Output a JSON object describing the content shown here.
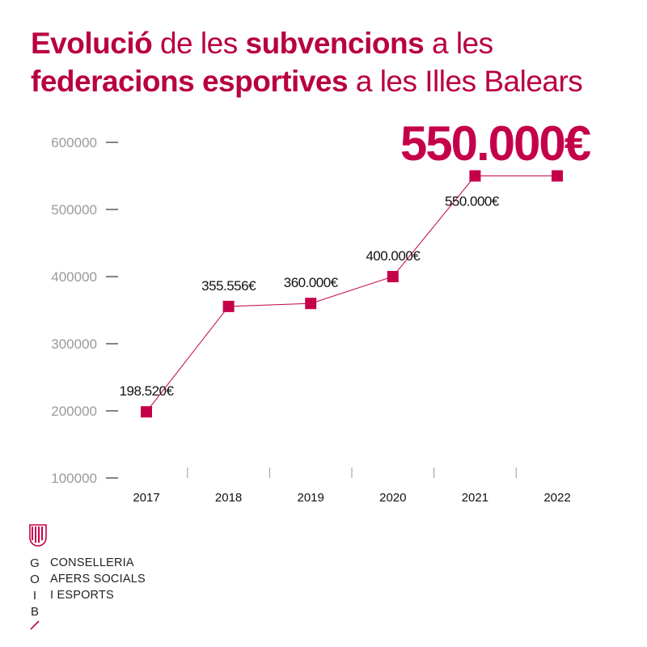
{
  "title": {
    "part1": "Evolució",
    "part2": " de les ",
    "part3": "subvencions",
    "part4": " a les",
    "part5": "federacions esportives",
    "part6": " a les Illes Balears"
  },
  "colors": {
    "accent": "#c5004a",
    "title": "#b8003f",
    "axis": "#9a9a9a",
    "text": "#111111"
  },
  "chart_data": {
    "type": "line",
    "categories": [
      "2017",
      "2018",
      "2019",
      "2020",
      "2021",
      "2022"
    ],
    "series": [
      {
        "values": [
          198520,
          355556,
          360000,
          400000,
          550000,
          550000
        ]
      }
    ],
    "data_labels": [
      "198.520€",
      "355.556€",
      "360.000€",
      "400.000€",
      "550.000€",
      ""
    ],
    "y_ticks": [
      "100000",
      "200000",
      "300000",
      "400000",
      "500000",
      "600000"
    ],
    "ylim": [
      100000,
      600000
    ],
    "highlight": "550.000€",
    "grid": false
  },
  "logo": {
    "letters": [
      "G",
      "O",
      "I",
      "B"
    ],
    "lines": [
      "CONSELLERIA",
      "AFERS SOCIALS",
      "I ESPORTS"
    ]
  }
}
